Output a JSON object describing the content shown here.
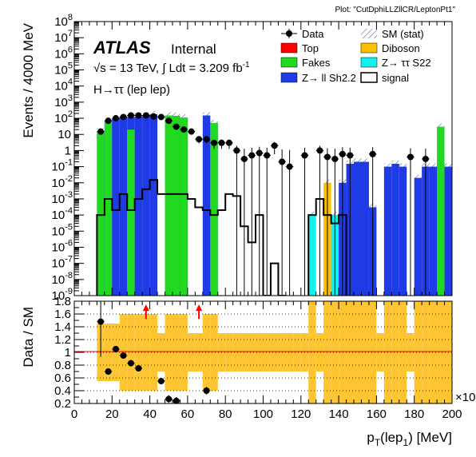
{
  "plot_tag": "Plot: \"CutDphiLLZllCR/LeptonPt1\"",
  "atlas": {
    "label": "ATLAS",
    "status": "Internal",
    "sqrt_s": "13 TeV",
    "lumi": "3.209 fb",
    "channel": "H→ττ (lep lep)"
  },
  "legend": [
    {
      "label": "Data",
      "style": "marker",
      "color": "#000000"
    },
    {
      "label": "SM (stat)",
      "style": "hatch",
      "color": "#3b4ea8"
    },
    {
      "label": "Top",
      "style": "fill",
      "color": "#ff0000"
    },
    {
      "label": "Diboson",
      "style": "fill",
      "color": "#ffbf00"
    },
    {
      "label": "Fakes",
      "style": "fill",
      "color": "#21d921"
    },
    {
      "label": "Z→ ττ S22",
      "style": "fill",
      "color": "#12f0f0"
    },
    {
      "label": "Z→ ll Sh2.2",
      "style": "fill",
      "color": "#1f3be6"
    },
    {
      "label": "signal",
      "style": "line",
      "color": "#000000"
    }
  ],
  "chart_data": [
    {
      "type": "bar",
      "panel": "main",
      "ylabel": "Events / 4000 MeV",
      "yscale": "log",
      "ylim": [
        1e-09,
        100000000.0
      ],
      "xlim": [
        0,
        200
      ],
      "bin_width": 4,
      "bin_edges_start": 0,
      "series": [
        {
          "name": "Z→ ll Sh2.2",
          "color": "#1f3be6",
          "values": [
            0,
            0,
            0,
            15,
            60,
            100,
            120,
            120,
            130,
            150,
            180,
            0,
            150,
            140,
            110,
            0,
            0,
            150,
            50,
            0,
            0,
            0,
            0,
            0,
            0,
            0,
            0,
            0,
            0,
            0,
            0,
            0,
            0,
            0,
            0,
            0.01,
            0.15,
            0.2,
            0.2,
            0.0003,
            0,
            0.1,
            0.15,
            0.1,
            0,
            0.02,
            0.1,
            0.1,
            0.15,
            0.1
          ]
        },
        {
          "name": "Fakes",
          "color": "#21d921",
          "values": [
            0,
            0,
            0,
            15,
            60,
            0,
            0,
            20,
            0,
            0,
            0,
            0,
            150,
            140,
            110,
            0,
            0,
            0,
            50,
            0,
            0,
            0,
            0,
            0,
            0,
            0,
            0,
            0,
            0,
            0,
            0,
            0,
            0,
            0,
            0,
            0,
            0,
            0,
            0,
            0,
            0,
            0,
            0,
            0,
            0,
            0,
            0,
            0,
            30,
            0
          ]
        },
        {
          "name": "Z→ ττ S22",
          "color": "#12f0f0",
          "values": [
            0,
            0,
            0,
            0,
            0,
            0,
            0,
            0,
            0,
            0,
            0,
            0,
            0,
            0,
            0,
            0,
            0,
            0,
            0,
            0,
            0,
            0,
            0,
            0,
            0,
            0,
            0,
            0,
            0,
            0,
            0,
            0.0001,
            0,
            0.0001,
            0.0001,
            0,
            0,
            0,
            0,
            0,
            0,
            0,
            0,
            0,
            0,
            0,
            0,
            0,
            0,
            0
          ]
        },
        {
          "name": "Diboson",
          "color": "#ffbf00",
          "values": [
            0,
            0,
            0,
            0,
            0,
            0,
            0,
            0,
            0,
            0,
            0,
            0,
            0,
            0,
            0,
            0,
            0,
            0,
            0,
            0,
            0,
            0,
            0,
            0,
            0,
            0,
            0,
            0,
            0,
            0,
            0,
            0,
            0,
            0.01,
            0,
            0,
            0,
            0,
            0,
            0,
            0,
            0,
            0,
            0,
            0,
            0,
            0,
            0,
            0,
            0
          ]
        },
        {
          "name": "signal",
          "color": "#000000",
          "values": [
            0,
            0,
            0,
            0.0001,
            0.001,
            0.0002,
            0.002,
            0.0002,
            0.001,
            0.004,
            0.015,
            0.002,
            0.002,
            0.002,
            0.002,
            0.001,
            0.0003,
            0.0002,
            0.0001,
            0.0002,
            0.002,
            0.0015,
            2e-05,
            2e-06,
            0.0001,
            1e-09,
            1e-07,
            1e-09,
            0,
            0,
            0,
            0.0001,
            0.001,
            0.0001,
            3e-05,
            0.0001,
            0,
            0,
            0,
            0,
            0,
            0,
            0,
            0,
            0,
            0,
            0,
            0,
            0,
            0
          ]
        },
        {
          "name": "Data",
          "x": [
            14,
            18,
            22,
            26,
            30,
            34,
            38,
            42,
            46,
            50,
            54,
            58,
            62,
            66,
            70,
            74,
            78,
            82,
            86,
            90,
            94,
            98,
            102,
            106,
            110,
            114,
            122,
            130,
            134,
            138,
            142,
            146,
            158,
            178,
            186
          ],
          "y": [
            15,
            70,
            100,
            120,
            150,
            150,
            150,
            130,
            120,
            70,
            30,
            20,
            15,
            5,
            5,
            3,
            3,
            3,
            1,
            0.3,
            0.5,
            0.7,
            0.5,
            2,
            0.2,
            0.1,
            0.5,
            1,
            0.4,
            0.3,
            0.6,
            0.5,
            0.6,
            0.4,
            0.3
          ]
        }
      ]
    },
    {
      "type": "scatter",
      "panel": "ratio",
      "xlabel": "p_T(lep_1) [MeV]",
      "ylabel": "Data / SM",
      "xlim": [
        0,
        200
      ],
      "ylim": [
        0.2,
        1.8
      ],
      "x_ticks": [
        0,
        20,
        40,
        60,
        80,
        100,
        120,
        140,
        160,
        180,
        200
      ],
      "y_ticks": [
        0.2,
        0.4,
        0.6,
        0.8,
        1,
        1.2,
        1.4,
        1.6,
        1.8
      ],
      "x_exponent_label": "×10",
      "reference_line": 1,
      "points": {
        "x": [
          14,
          18,
          22,
          26,
          30,
          34,
          46,
          50,
          54,
          70
        ],
        "y": [
          1.48,
          0.7,
          1.05,
          0.95,
          0.83,
          0.75,
          0.55,
          0.27,
          0.24,
          0.4
        ]
      },
      "overflow_arrows_x": [
        38,
        66
      ]
    }
  ]
}
